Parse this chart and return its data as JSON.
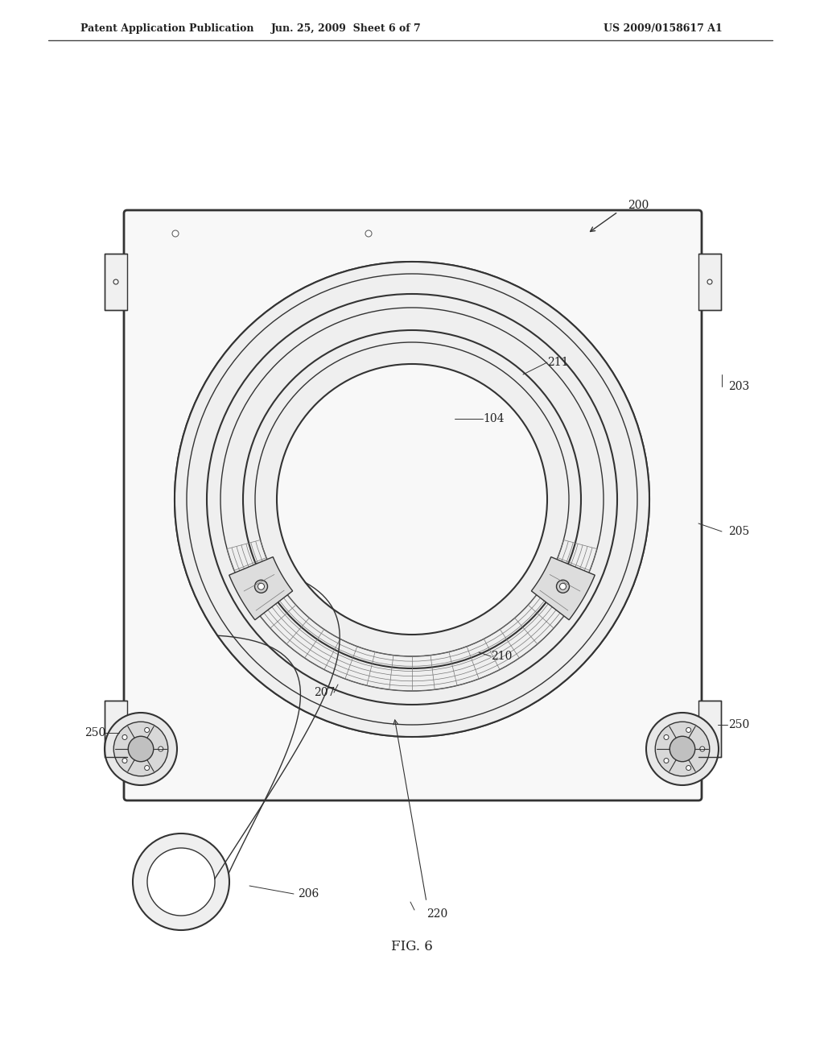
{
  "bg_color": "#ffffff",
  "line_color": "#333333",
  "light_gray": "#aaaaaa",
  "medium_gray": "#888888",
  "dark_gray": "#555555",
  "header_left": "Patent Application Publication",
  "header_mid": "Jun. 25, 2009  Sheet 6 of 7",
  "header_right": "US 2009/0158617 A1",
  "fig_label": "FIG. 6",
  "label_200": "200",
  "label_203": "203",
  "label_205": "205",
  "label_211": "211",
  "label_104": "104",
  "label_210": "210",
  "label_207": "207",
  "label_206": "206",
  "label_220": "220",
  "label_250_left": "250",
  "label_250_right": "250"
}
